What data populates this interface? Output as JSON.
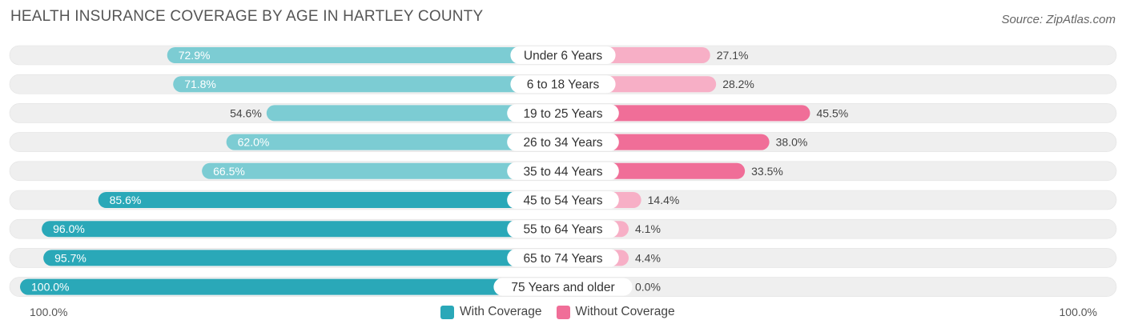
{
  "title": "HEALTH INSURANCE COVERAGE BY AGE IN HARTLEY COUNTY",
  "source": "Source: ZipAtlas.com",
  "colors": {
    "with_dark": "#2aa8b8",
    "with_light": "#7cccd3",
    "without_dark": "#f06e98",
    "without_light": "#f7afc6",
    "track": "#efefef"
  },
  "chart_data": {
    "type": "bar",
    "orientation": "horizontal-diverging",
    "title": "HEALTH INSURANCE COVERAGE BY AGE IN HARTLEY COUNTY",
    "categories": [
      "Under 6 Years",
      "6 to 18 Years",
      "19 to 25 Years",
      "26 to 34 Years",
      "35 to 44 Years",
      "45 to 54 Years",
      "55 to 64 Years",
      "65 to 74 Years",
      "75 Years and older"
    ],
    "series": [
      {
        "name": "With Coverage",
        "values": [
          72.9,
          71.8,
          54.6,
          62.0,
          66.5,
          85.6,
          96.0,
          95.7,
          100.0
        ],
        "labels": [
          "72.9%",
          "71.8%",
          "54.6%",
          "62.0%",
          "66.5%",
          "85.6%",
          "96.0%",
          "95.7%",
          "100.0%"
        ]
      },
      {
        "name": "Without Coverage",
        "values": [
          27.1,
          28.2,
          45.5,
          38.0,
          33.5,
          14.4,
          4.1,
          4.4,
          0.0
        ],
        "labels": [
          "27.1%",
          "28.2%",
          "45.5%",
          "38.0%",
          "33.5%",
          "14.4%",
          "4.1%",
          "4.4%",
          "0.0%"
        ]
      }
    ],
    "xlim": [
      0,
      100
    ],
    "axis_left_label": "100.0%",
    "axis_right_label": "100.0%",
    "legend": [
      "With Coverage",
      "Without Coverage"
    ],
    "legend_position": "bottom-center"
  }
}
